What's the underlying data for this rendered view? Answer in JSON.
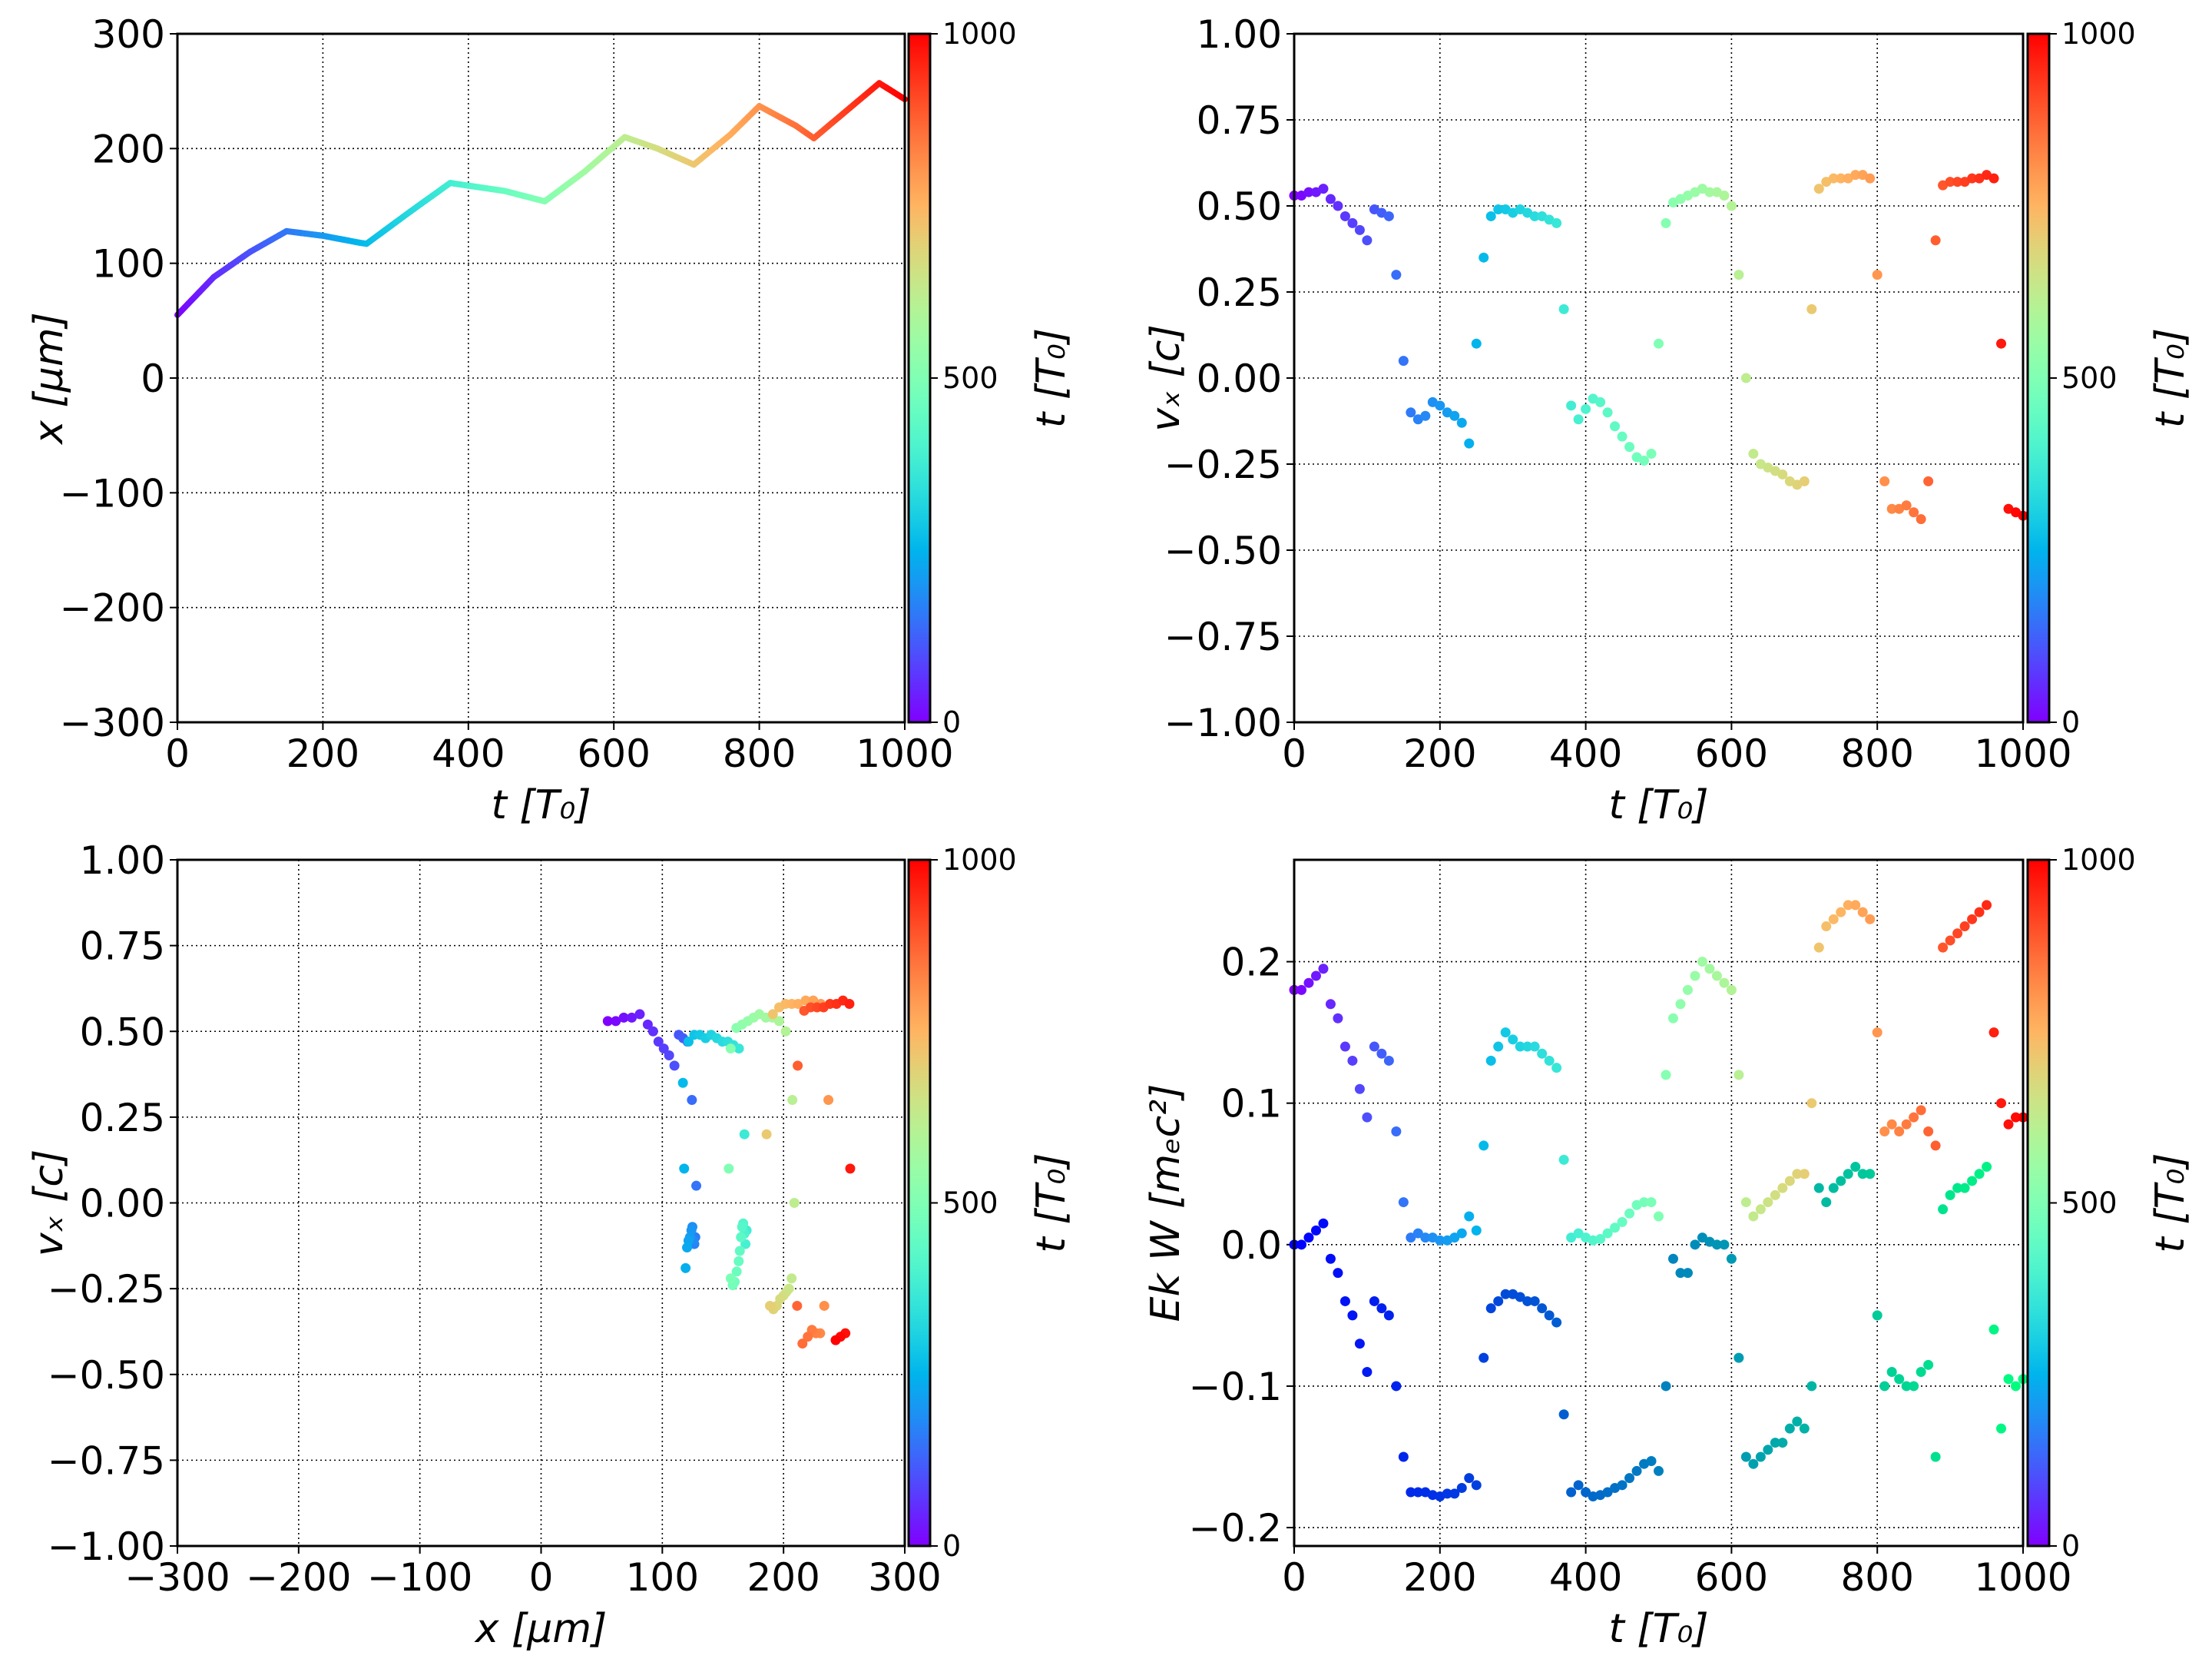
{
  "colormap": "rainbow",
  "colorbar": {
    "label": "t [T₀]",
    "ticks": [
      "0",
      "500",
      "1000"
    ],
    "range": [
      0,
      1000
    ]
  },
  "chart_data": [
    {
      "type": "line",
      "xlabel": "t  [T₀]",
      "ylabel": "x  [μm]",
      "xlim": [
        0,
        1000
      ],
      "ylim": [
        -300,
        300
      ],
      "xticks": [
        0,
        200,
        400,
        600,
        800,
        1000
      ],
      "xticklabels": [
        "0",
        "200",
        "400",
        "600",
        "800",
        "1000"
      ],
      "yticks": [
        -300,
        -200,
        -100,
        0,
        100,
        200,
        300
      ],
      "yticklabels": [
        "−300",
        "−200",
        "−100",
        "0",
        "100",
        "200",
        "300"
      ],
      "grid": true,
      "x": [
        0,
        50,
        100,
        150,
        200,
        250,
        260,
        320,
        375,
        450,
        505,
        560,
        615,
        660,
        710,
        760,
        800,
        850,
        875,
        920,
        965,
        1000
      ],
      "y": [
        55,
        88,
        110,
        128,
        124,
        118,
        117,
        145,
        170,
        163,
        154,
        180,
        210,
        200,
        186,
        212,
        237,
        220,
        209,
        233,
        257,
        243
      ]
    },
    {
      "type": "scatter",
      "xlabel": "t [T₀]",
      "ylabel": "vₓ [c]",
      "xlim": [
        0,
        1000
      ],
      "ylim": [
        -1,
        1
      ],
      "xticks": [
        0,
        200,
        400,
        600,
        800,
        1000
      ],
      "xticklabels": [
        "0",
        "200",
        "400",
        "600",
        "800",
        "1000"
      ],
      "yticks": [
        -1,
        -0.75,
        -0.5,
        -0.25,
        0,
        0.25,
        0.5,
        0.75,
        1
      ],
      "yticklabels": [
        "−1.00",
        "−0.75",
        "−0.50",
        "−0.25",
        "0.00",
        "0.25",
        "0.50",
        "0.75",
        "1.00"
      ],
      "grid": true,
      "x": [
        0,
        10,
        20,
        30,
        40,
        50,
        60,
        70,
        80,
        90,
        100,
        110,
        120,
        130,
        140,
        150,
        160,
        170,
        180,
        190,
        200,
        210,
        220,
        230,
        240,
        250,
        260,
        270,
        280,
        290,
        300,
        310,
        320,
        330,
        340,
        350,
        360,
        370,
        380,
        390,
        400,
        410,
        420,
        430,
        440,
        450,
        460,
        470,
        480,
        490,
        500,
        510,
        520,
        530,
        540,
        550,
        560,
        570,
        580,
        590,
        600,
        610,
        620,
        630,
        640,
        650,
        660,
        670,
        680,
        690,
        700,
        710,
        720,
        730,
        740,
        750,
        760,
        770,
        780,
        790,
        800,
        810,
        820,
        830,
        840,
        850,
        860,
        870,
        880,
        890,
        900,
        910,
        920,
        930,
        940,
        950,
        960,
        970,
        980,
        990,
        1000
      ],
      "y": [
        0.53,
        0.53,
        0.54,
        0.54,
        0.55,
        0.52,
        0.5,
        0.47,
        0.45,
        0.43,
        0.4,
        0.49,
        0.48,
        0.47,
        0.3,
        0.05,
        -0.1,
        -0.12,
        -0.11,
        -0.07,
        -0.08,
        -0.1,
        -0.11,
        -0.13,
        -0.19,
        0.1,
        0.35,
        0.47,
        0.49,
        0.49,
        0.48,
        0.49,
        0.48,
        0.47,
        0.47,
        0.46,
        0.45,
        0.2,
        -0.08,
        -0.12,
        -0.09,
        -0.06,
        -0.07,
        -0.1,
        -0.14,
        -0.17,
        -0.2,
        -0.23,
        -0.24,
        -0.22,
        0.1,
        0.45,
        0.51,
        0.52,
        0.53,
        0.54,
        0.55,
        0.54,
        0.54,
        0.53,
        0.5,
        0.3,
        0.0,
        -0.22,
        -0.25,
        -0.26,
        -0.27,
        -0.28,
        -0.3,
        -0.31,
        -0.3,
        0.2,
        0.55,
        0.57,
        0.58,
        0.58,
        0.58,
        0.59,
        0.59,
        0.58,
        0.3,
        -0.3,
        -0.38,
        -0.38,
        -0.37,
        -0.39,
        -0.41,
        -0.3,
        0.4,
        0.56,
        0.57,
        0.57,
        0.57,
        0.58,
        0.58,
        0.59,
        0.58,
        0.1,
        -0.38,
        -0.39,
        -0.4
      ]
    },
    {
      "type": "scatter",
      "xlabel": "x [μm]",
      "ylabel": "vₓ [c]",
      "xlim": [
        -300,
        300
      ],
      "ylim": [
        -1,
        1
      ],
      "xticks": [
        -300,
        -200,
        -100,
        0,
        100,
        200,
        300
      ],
      "xticklabels": [
        "−300",
        "−200",
        "−100",
        "0",
        "100",
        "200",
        "300"
      ],
      "yticks": [
        -1,
        -0.75,
        -0.5,
        -0.25,
        0,
        0.25,
        0.5,
        0.75,
        1
      ],
      "yticklabels": [
        "−1.00",
        "−0.75",
        "−0.50",
        "−0.25",
        "0.00",
        "0.25",
        "0.50",
        "0.75",
        "1.00"
      ],
      "grid": true
    },
    {
      "type": "scatter",
      "xlabel": "t [T₀]",
      "ylabel": "Ek W [mₑc²]",
      "xlim": [
        0,
        1000
      ],
      "ylim": [
        -0.213,
        0.272
      ],
      "xticks": [
        0,
        200,
        400,
        600,
        800,
        1000
      ],
      "xticklabels": [
        "0",
        "200",
        "400",
        "600",
        "800",
        "1000"
      ],
      "yticks": [
        -0.2,
        -0.1,
        0,
        0.1,
        0.2
      ],
      "yticklabels": [
        "−0.2",
        "−0.1",
        "0.0",
        "0.1",
        "0.2"
      ],
      "grid": true,
      "x": [
        0,
        10,
        20,
        30,
        40,
        50,
        60,
        70,
        80,
        90,
        100,
        110,
        120,
        130,
        140,
        150,
        160,
        170,
        180,
        190,
        200,
        210,
        220,
        230,
        240,
        250,
        260,
        270,
        280,
        290,
        300,
        310,
        320,
        330,
        340,
        350,
        360,
        370,
        380,
        390,
        400,
        410,
        420,
        430,
        440,
        450,
        460,
        470,
        480,
        490,
        500,
        510,
        520,
        530,
        540,
        550,
        560,
        570,
        580,
        590,
        600,
        610,
        620,
        630,
        640,
        650,
        660,
        670,
        680,
        690,
        700,
        710,
        720,
        730,
        740,
        750,
        760,
        770,
        780,
        790,
        800,
        810,
        820,
        830,
        840,
        850,
        860,
        870,
        880,
        890,
        900,
        910,
        920,
        930,
        940,
        950,
        960,
        970,
        980,
        990,
        1000
      ],
      "series": [
        {
          "colormap": "rainbow",
          "y": [
            0.18,
            0.18,
            0.185,
            0.19,
            0.195,
            0.17,
            0.16,
            0.14,
            0.13,
            0.11,
            0.09,
            0.14,
            0.135,
            0.13,
            0.08,
            0.03,
            0.005,
            0.008,
            0.005,
            0.005,
            0.003,
            0.003,
            0.005,
            0.008,
            0.02,
            0.01,
            0.07,
            0.13,
            0.14,
            0.15,
            0.145,
            0.14,
            0.14,
            0.14,
            0.135,
            0.13,
            0.125,
            0.06,
            0.005,
            0.008,
            0.005,
            0.003,
            0.004,
            0.008,
            0.012,
            0.016,
            0.022,
            0.028,
            0.03,
            0.03,
            0.02,
            0.12,
            0.16,
            0.17,
            0.18,
            0.19,
            0.2,
            0.195,
            0.19,
            0.185,
            0.18,
            0.12,
            0.03,
            0.02,
            0.025,
            0.03,
            0.035,
            0.04,
            0.045,
            0.05,
            0.05,
            0.1,
            0.21,
            0.225,
            0.23,
            0.235,
            0.24,
            0.24,
            0.235,
            0.23,
            0.15,
            0.08,
            0.085,
            0.08,
            0.085,
            0.09,
            0.095,
            0.08,
            0.07,
            0.21,
            0.215,
            0.22,
            0.225,
            0.23,
            0.235,
            0.24,
            0.15,
            0.1,
            0.085,
            0.09,
            0.09
          ]
        },
        {
          "colormap": "winter",
          "y": [
            0,
            0,
            0.005,
            0.01,
            0.015,
            -0.01,
            -0.02,
            -0.04,
            -0.05,
            -0.07,
            -0.09,
            -0.04,
            -0.045,
            -0.05,
            -0.1,
            -0.15,
            -0.175,
            -0.175,
            -0.175,
            -0.177,
            -0.178,
            -0.176,
            -0.176,
            -0.172,
            -0.165,
            -0.17,
            -0.08,
            -0.045,
            -0.04,
            -0.035,
            -0.035,
            -0.037,
            -0.04,
            -0.04,
            -0.045,
            -0.05,
            -0.055,
            -0.12,
            -0.175,
            -0.17,
            -0.175,
            -0.178,
            -0.177,
            -0.175,
            -0.172,
            -0.17,
            -0.165,
            -0.16,
            -0.155,
            -0.153,
            -0.16,
            -0.1,
            -0.01,
            -0.02,
            -0.02,
            0,
            0.005,
            0.002,
            0,
            0,
            -0.01,
            -0.08,
            -0.15,
            -0.155,
            -0.15,
            -0.145,
            -0.14,
            -0.14,
            -0.13,
            -0.125,
            -0.13,
            -0.1,
            0.04,
            0.03,
            0.04,
            0.045,
            0.05,
            0.055,
            0.05,
            0.05,
            -0.05,
            -0.1,
            -0.09,
            -0.095,
            -0.1,
            -0.1,
            -0.09,
            -0.085,
            -0.15,
            0.025,
            0.035,
            0.04,
            0.04,
            0.045,
            0.05,
            0.055,
            -0.06,
            -0.13,
            -0.095,
            -0.1,
            -0.095
          ]
        }
      ]
    }
  ]
}
